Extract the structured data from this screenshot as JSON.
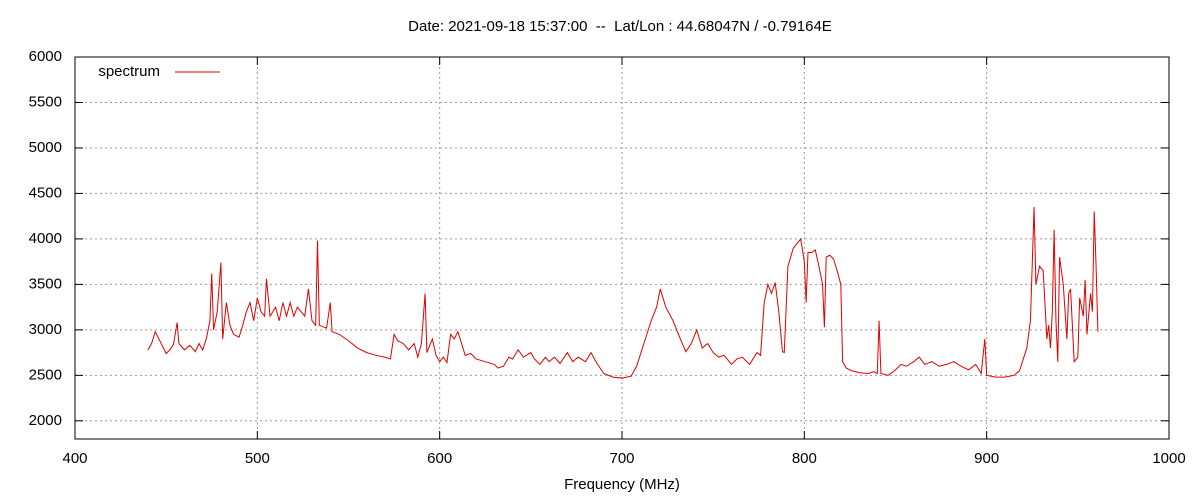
{
  "chart_data": {
    "type": "line",
    "title": "Date: 2021-09-18 15:37:00  --  Lat/Lon : 44.68047N / -0.79164E",
    "x_label": "Frequency (MHz)",
    "xlim": [
      400,
      1000
    ],
    "xticks": [
      400,
      500,
      600,
      700,
      800,
      900,
      1000
    ],
    "ylim": [
      1800,
      6000
    ],
    "yticks": [
      2000,
      2500,
      3000,
      3500,
      4000,
      4500,
      5000,
      5500,
      6000
    ],
    "grid": true,
    "legend": "top-left",
    "x": [
      440,
      442,
      444,
      446,
      448,
      450,
      452,
      454,
      456,
      457,
      460,
      463,
      466,
      468,
      470,
      472,
      474,
      475,
      476,
      478,
      480,
      481,
      483,
      485,
      487,
      490,
      492,
      494,
      496,
      498,
      500,
      502,
      504,
      505,
      507,
      510,
      512,
      514,
      516,
      518,
      520,
      522,
      524,
      526,
      528,
      530,
      532,
      533,
      534,
      538,
      540,
      541,
      545,
      550,
      555,
      560,
      565,
      570,
      573,
      575,
      577,
      580,
      583,
      586,
      588,
      590,
      592,
      593,
      596,
      598,
      600,
      602,
      604,
      606,
      608,
      610,
      612,
      614,
      617,
      620,
      625,
      630,
      632,
      635,
      638,
      640,
      643,
      646,
      650,
      652,
      655,
      658,
      660,
      663,
      666,
      670,
      673,
      676,
      680,
      683,
      686,
      690,
      695,
      700,
      705,
      708,
      712,
      716,
      719,
      721,
      724,
      728,
      732,
      735,
      738,
      741,
      744,
      747,
      750,
      753,
      756,
      760,
      763,
      766,
      770,
      774,
      776,
      778,
      780,
      782,
      784,
      786,
      788,
      789,
      791,
      794,
      796,
      798,
      800,
      801,
      802,
      804,
      806,
      808,
      810,
      811,
      812,
      814,
      816,
      818,
      820,
      821,
      823,
      826,
      830,
      835,
      838,
      840,
      841,
      842,
      846,
      850,
      853,
      856,
      860,
      863,
      866,
      870,
      874,
      878,
      882,
      886,
      890,
      894,
      897,
      899,
      900,
      905,
      910,
      915,
      918,
      922,
      924,
      926,
      927,
      929,
      931,
      933,
      934,
      935,
      936,
      937,
      938,
      939,
      940,
      942,
      944,
      945,
      946,
      948,
      950,
      951,
      953,
      954,
      955,
      957,
      958,
      959,
      960,
      961
    ],
    "series": [
      {
        "name": "spectrum",
        "color": "#e00000",
        "values": [
          2780,
          2850,
          2980,
          2900,
          2820,
          2740,
          2780,
          2840,
          3080,
          2850,
          2780,
          2830,
          2760,
          2850,
          2780,
          2900,
          3100,
          3620,
          3000,
          3200,
          3740,
          2900,
          3300,
          3050,
          2950,
          2920,
          3050,
          3200,
          3300,
          3100,
          3350,
          3200,
          3150,
          3560,
          3150,
          3250,
          3100,
          3300,
          3150,
          3300,
          3150,
          3250,
          3200,
          3150,
          3450,
          3100,
          3050,
          3980,
          3050,
          3020,
          3300,
          2980,
          2950,
          2880,
          2800,
          2750,
          2720,
          2700,
          2680,
          2950,
          2880,
          2850,
          2780,
          2850,
          2700,
          2850,
          3400,
          2750,
          2900,
          2720,
          2650,
          2700,
          2640,
          2950,
          2900,
          2980,
          2850,
          2720,
          2740,
          2680,
          2650,
          2620,
          2580,
          2600,
          2700,
          2680,
          2780,
          2700,
          2750,
          2680,
          2620,
          2700,
          2650,
          2700,
          2630,
          2750,
          2650,
          2700,
          2650,
          2750,
          2640,
          2520,
          2480,
          2470,
          2490,
          2600,
          2850,
          3100,
          3250,
          3450,
          3250,
          3100,
          2900,
          2760,
          2850,
          3000,
          2800,
          2850,
          2750,
          2700,
          2720,
          2620,
          2680,
          2700,
          2620,
          2750,
          2720,
          3300,
          3500,
          3400,
          3520,
          3200,
          2760,
          2750,
          3700,
          3900,
          3950,
          4000,
          3750,
          3300,
          3850,
          3850,
          3880,
          3700,
          3500,
          3030,
          3800,
          3820,
          3780,
          3650,
          3500,
          2650,
          2580,
          2550,
          2530,
          2520,
          2540,
          2520,
          3100,
          2520,
          2500,
          2560,
          2620,
          2600,
          2650,
          2700,
          2620,
          2650,
          2600,
          2620,
          2650,
          2600,
          2560,
          2620,
          2520,
          2900,
          2500,
          2480,
          2480,
          2500,
          2550,
          2800,
          3100,
          4350,
          3500,
          3700,
          3650,
          2900,
          3050,
          2800,
          3200,
          4100,
          3100,
          2650,
          3800,
          3500,
          2900,
          3400,
          3450,
          2650,
          2700,
          3350,
          3150,
          3550,
          2950,
          3400,
          3200,
          4300,
          3700,
          2980
        ]
      }
    ]
  }
}
